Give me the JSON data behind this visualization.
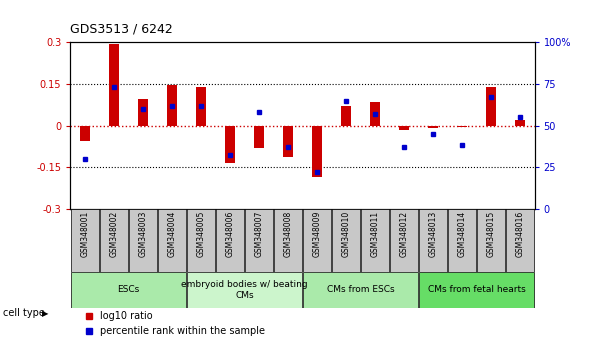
{
  "title": "GDS3513 / 6242",
  "samples": [
    "GSM348001",
    "GSM348002",
    "GSM348003",
    "GSM348004",
    "GSM348005",
    "GSM348006",
    "GSM348007",
    "GSM348008",
    "GSM348009",
    "GSM348010",
    "GSM348011",
    "GSM348012",
    "GSM348013",
    "GSM348014",
    "GSM348015",
    "GSM348016"
  ],
  "log10_ratio": [
    -0.055,
    0.295,
    0.095,
    0.145,
    0.14,
    -0.135,
    -0.08,
    -0.115,
    -0.185,
    0.07,
    0.085,
    -0.015,
    -0.01,
    -0.005,
    0.14,
    0.02
  ],
  "percentile_rank": [
    30,
    73,
    60,
    62,
    62,
    32,
    58,
    37,
    22,
    65,
    57,
    37,
    45,
    38,
    67,
    55
  ],
  "ylim_left": [
    -0.3,
    0.3
  ],
  "ylim_right": [
    0,
    100
  ],
  "yticks_left": [
    -0.3,
    -0.15,
    0.0,
    0.15,
    0.3
  ],
  "yticks_right": [
    0,
    25,
    50,
    75,
    100
  ],
  "ytick_labels_left": [
    "-0.3",
    "-0.15",
    "0",
    "0.15",
    "0.3"
  ],
  "ytick_labels_right": [
    "0",
    "25",
    "50",
    "75",
    "100%"
  ],
  "cell_groups": [
    {
      "label": "ESCs",
      "start": 0,
      "end": 4,
      "color": "#aaeaaa"
    },
    {
      "label": "embryoid bodies w/ beating\nCMs",
      "start": 4,
      "end": 8,
      "color": "#ccf5cc"
    },
    {
      "label": "CMs from ESCs",
      "start": 8,
      "end": 12,
      "color": "#aaeaaa"
    },
    {
      "label": "CMs from fetal hearts",
      "start": 12,
      "end": 16,
      "color": "#66dd66"
    }
  ],
  "bar_width": 0.35,
  "red_color": "#CC0000",
  "blue_color": "#0000CC",
  "bg_color": "#ffffff",
  "sample_bg_color": "#c8c8c8",
  "cell_type_label": "cell type",
  "legend_log10": "log10 ratio",
  "legend_pct": "percentile rank within the sample"
}
